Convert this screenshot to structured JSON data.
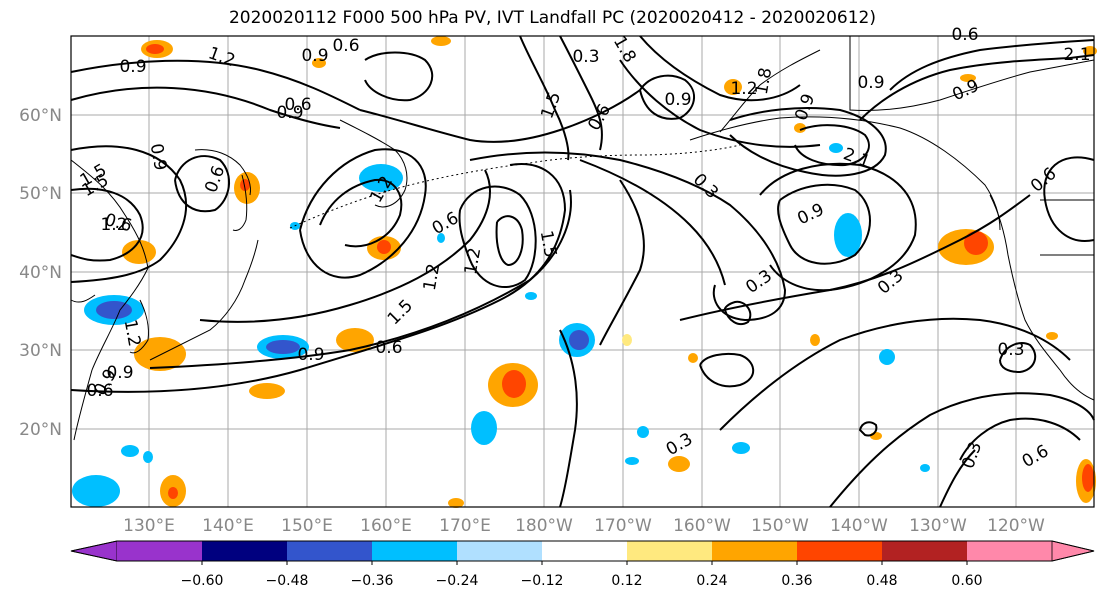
{
  "title": "2020020112 F000 500 hPa PV, IVT Landfall PC (2020020412 - 2020020612)",
  "lat_labels": [
    "60°N",
    "50°N",
    "40°N",
    "30°N",
    "20°N"
  ],
  "lon_labels": [
    "130°E",
    "140°E",
    "150°E",
    "160°E",
    "170°E",
    "180°W",
    "170°W",
    "160°W",
    "150°W",
    "140°W",
    "130°W",
    "120°W"
  ],
  "colorbar": {
    "colors": [
      "#9933cc",
      "#00007f",
      "#3355cc",
      "#00bfff",
      "#b0e0ff",
      "#ffffff",
      "#ffe97f",
      "#ffa500",
      "#ff4500",
      "#b22222",
      "#ff88aa"
    ],
    "tick_labels": [
      "−0.60",
      "−0.48",
      "−0.36",
      "−0.24",
      "−0.12",
      "0.12",
      "0.24",
      "0.36",
      "0.48",
      "0.60"
    ]
  },
  "contour_labels": [
    "0.6",
    "0.9",
    "1.2",
    "0.9",
    "1.8",
    "2.1",
    "1.5",
    "0.9",
    "1.2",
    "0.6",
    "1.8",
    "0.9",
    "1.5",
    "0.6",
    "0.9",
    "0.6",
    "0.9",
    "0.6",
    "1.2",
    "0.3",
    "0.6",
    "0.9",
    "2.1",
    "1.5",
    "0.9",
    "1.2",
    "0.9",
    "1.2",
    "0.6",
    "1.2",
    "1.5",
    "0.9",
    "0.3",
    "0.3",
    "1.2",
    "0.3",
    "1.5",
    "0.9",
    "0.6",
    "0.3",
    "0.9",
    "0.6",
    "0.6",
    "0.3",
    "0.3",
    "0.6"
  ]
}
